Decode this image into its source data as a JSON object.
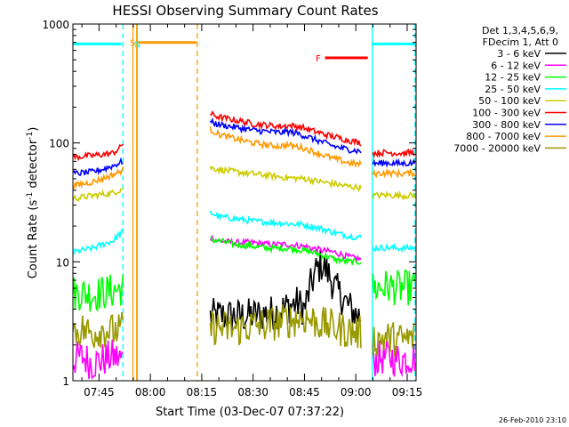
{
  "chart_data": {
    "type": "line",
    "title": "HESSI Observing Summary Count Rates",
    "xlabel": "Start Time (03-Dec-07 07:37:22)",
    "ylabel": "Count Rate (s⁻¹ detector⁻¹)",
    "ylabel_parts": [
      "Count Rate (s",
      "-1",
      " detector",
      "-1",
      ")"
    ],
    "yscale": "log",
    "ylim": [
      1,
      1000
    ],
    "xlim_minutes": [
      37.37,
      137.6
    ],
    "x_ticks": [
      {
        "minute": 45,
        "label": "07:45"
      },
      {
        "minute": 60,
        "label": "08:00"
      },
      {
        "minute": 75,
        "label": "08:15"
      },
      {
        "minute": 90,
        "label": "08:30"
      },
      {
        "minute": 105,
        "label": "08:45"
      },
      {
        "minute": 120,
        "label": "09:00"
      },
      {
        "minute": 135,
        "label": "09:15"
      }
    ],
    "y_ticks": [
      {
        "value": 1,
        "label": "1"
      },
      {
        "value": 10,
        "label": "10"
      },
      {
        "value": 100,
        "label": "100"
      },
      {
        "value": 1000,
        "label": "1000"
      }
    ],
    "legend": {
      "header": [
        "Det 1,3,4,5,6,9,",
        "FDecim 1, Att 0"
      ],
      "placement": "right"
    },
    "series": [
      {
        "name": "3 - 6 keV",
        "color": "#000000",
        "segments": [
          {
            "x": [
              77.5,
              82,
              87,
              92,
              97,
              100,
              103,
              105,
              107,
              108.5,
              110,
              112,
              114,
              116,
              118,
              120,
              121.5
            ],
            "y": [
              3.5,
              3.5,
              3.5,
              3.6,
              3.8,
              4.2,
              4.5,
              4.0,
              6.5,
              8.5,
              9.5,
              8.0,
              6.0,
              5.0,
              4.2,
              3.6,
              3.5
            ]
          }
        ]
      },
      {
        "name": "6 - 12 keV",
        "color": "#ff00ff",
        "segments": [
          {
            "x": [
              37.4,
              40,
              43,
              46,
              49,
              52
            ],
            "y": [
              1.5,
              1.6,
              1.4,
              1.5,
              1.6,
              1.5
            ]
          },
          {
            "x": [
              77.5,
              80,
              85,
              90,
              95,
              100,
              105,
              110,
              114,
              118,
              121.5
            ],
            "y": [
              16,
              15,
              14.5,
              14.5,
              14,
              14,
              13.5,
              12.5,
              12,
              11,
              10.5
            ]
          },
          {
            "x": [
              125,
              129,
              133,
              137.2
            ],
            "y": [
              1.5,
              1.6,
              1.5,
              1.6
            ]
          }
        ]
      },
      {
        "name": "12 - 25 keV",
        "color": "#00ff00",
        "segments": [
          {
            "x": [
              37.4,
              40,
              43,
              46,
              49,
              52
            ],
            "y": [
              5.5,
              5.5,
              5.3,
              5.5,
              5.7,
              6.0
            ]
          },
          {
            "x": [
              77.5,
              80,
              85,
              90,
              95,
              100,
              105,
              110,
              114,
              118,
              121.5
            ],
            "y": [
              15.5,
              15,
              14,
              13.5,
              13,
              13,
              12.5,
              11.5,
              10.5,
              10,
              10
            ]
          },
          {
            "x": [
              125,
              129,
              133,
              137.2
            ],
            "y": [
              6,
              6.2,
              6,
              6.1
            ]
          }
        ]
      },
      {
        "name": "25 - 50 keV",
        "color": "#00ffff",
        "segments": [
          {
            "x": [
              37.4,
              40,
              43,
              46,
              49,
              51,
              52
            ],
            "y": [
              12,
              12.5,
              13,
              14,
              15,
              17,
              18
            ]
          },
          {
            "x": [
              77.5,
              80,
              85,
              90,
              95,
              100,
              105,
              110,
              114,
              118,
              121.5
            ],
            "y": [
              26,
              24,
              23,
              22,
              21.5,
              21,
              20.5,
              19,
              17.5,
              16.5,
              16
            ]
          },
          {
            "x": [
              125,
              129,
              133,
              137.2
            ],
            "y": [
              13,
              13.2,
              13,
              13.1
            ]
          }
        ]
      },
      {
        "name": "50 - 100 keV",
        "color": "#cccc00",
        "segments": [
          {
            "x": [
              37.4,
              40,
              43,
              46,
              49,
              51,
              52
            ],
            "y": [
              34,
              35,
              36,
              37,
              38,
              40,
              42
            ]
          },
          {
            "x": [
              77.5,
              80,
              85,
              90,
              95,
              100,
              105,
              110,
              114,
              118,
              121.5
            ],
            "y": [
              62,
              60,
              57,
              55,
              53,
              51,
              50,
              47,
              45,
              43,
              42
            ]
          },
          {
            "x": [
              125,
              129,
              133,
              137.2
            ],
            "y": [
              36,
              36.5,
              36,
              36.2
            ]
          }
        ]
      },
      {
        "name": "100 - 300 keV",
        "color": "#ff0000",
        "segments": [
          {
            "x": [
              37.4,
              40,
              43,
              46,
              49,
              51,
              52
            ],
            "y": [
              76,
              77,
              78,
              80,
              82,
              90,
              100
            ]
          },
          {
            "x": [
              77.5,
              80,
              85,
              90,
              95,
              98,
              100,
              103,
              105,
              110,
              114,
              118,
              121.5
            ],
            "y": [
              175,
              165,
              155,
              145,
              140,
              138,
              140,
              138,
              133,
              120,
              112,
              105,
              100
            ]
          },
          {
            "x": [
              125,
              129,
              133,
              137.2
            ],
            "y": [
              82,
              83,
              82,
              83
            ]
          }
        ]
      },
      {
        "name": "300 - 800 keV",
        "color": "#0000ff",
        "segments": [
          {
            "x": [
              37.4,
              40,
              43,
              46,
              49,
              51,
              52
            ],
            "y": [
              55,
              56,
              57,
              60,
              64,
              68,
              70
            ]
          },
          {
            "x": [
              77.5,
              80,
              85,
              90,
              95,
              98,
              100,
              103,
              105,
              110,
              114,
              118,
              121.5
            ],
            "y": [
              150,
              143,
              135,
              128,
              124,
              122,
              125,
              120,
              115,
              102,
              93,
              88,
              85
            ]
          },
          {
            "x": [
              125,
              129,
              133,
              137.2
            ],
            "y": [
              67,
              68,
              67,
              68
            ]
          }
        ]
      },
      {
        "name": "800 - 7000 keV",
        "color": "#ff9900",
        "segments": [
          {
            "x": [
              37.4,
              40,
              43,
              46,
              49,
              51,
              52
            ],
            "y": [
              44,
              45,
              47,
              50,
              54,
              57,
              60
            ]
          },
          {
            "x": [
              77.5,
              80,
              85,
              90,
              95,
              98,
              100,
              103,
              105,
              110,
              114,
              118,
              121.5
            ],
            "y": [
              130,
              118,
              108,
              100,
              95,
              94,
              96,
              93,
              90,
              80,
              73,
              68,
              66
            ]
          },
          {
            "x": [
              125,
              129,
              133,
              137.2
            ],
            "y": [
              55,
              56,
              55,
              56
            ]
          }
        ]
      },
      {
        "name": "7000 - 20000 keV",
        "color": "#999900",
        "segments": [
          {
            "x": [
              37.4,
              40,
              43,
              46,
              49,
              52
            ],
            "y": [
              2.6,
              2.7,
              2.5,
              2.7,
              2.6,
              2.7
            ]
          },
          {
            "x": [
              77.5,
              80,
              85,
              90,
              95,
              100,
              105,
              110,
              114,
              118,
              121.5
            ],
            "y": [
              2.8,
              2.8,
              2.7,
              2.9,
              3.0,
              3.2,
              3.4,
              3.0,
              2.8,
              2.6,
              2.5
            ]
          },
          {
            "x": [
              125,
              129,
              133,
              137.2
            ],
            "y": [
              2.2,
              2.3,
              2.2,
              2.3
            ]
          }
        ]
      }
    ],
    "status_bars": [
      {
        "label": "S",
        "color": "#ff9900",
        "label_minute": 54.8,
        "x_start": 56.2,
        "x_end": 73.5,
        "level": 700
      },
      {
        "label": "N",
        "color": "#00ffff",
        "label_minute": 56.2,
        "x_start": 37.4,
        "x_end": 51.5,
        "level": 680
      },
      {
        "label": "",
        "color": "#00ffff",
        "x_start": 124.8,
        "x_end": 137.4,
        "level": 680
      },
      {
        "label": "F",
        "color": "#ff0000",
        "label_minute": 109,
        "x_start": 111,
        "x_end": 123.5,
        "level": 520
      }
    ],
    "status_vlines": [
      {
        "minute": 52.0,
        "color": "#00ffff",
        "style": "dashed"
      },
      {
        "minute": 56.2,
        "color": "#00ffff",
        "style": "solid"
      },
      {
        "minute": 54.9,
        "color": "#ff9900",
        "style": "solid"
      },
      {
        "minute": 56.0,
        "color": "#ff9900",
        "style": "solid"
      },
      {
        "minute": 73.7,
        "color": "#ff9900",
        "style": "dashed"
      },
      {
        "minute": 124.8,
        "color": "#00ffff",
        "style": "solid"
      },
      {
        "minute": 137.3,
        "color": "#00ffff",
        "style": "dashed"
      }
    ]
  },
  "footer": {
    "timestamp": "26-Feb-2010 23:10"
  }
}
